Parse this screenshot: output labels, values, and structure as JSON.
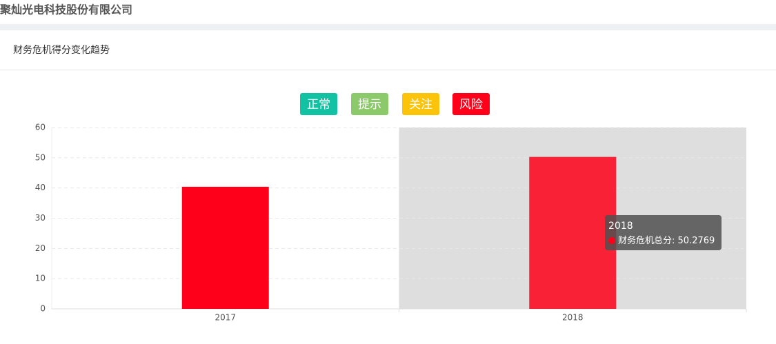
{
  "header": {
    "title": "聚灿光电科技股份有限公司"
  },
  "panel": {
    "title": "财务危机得分变化趋势"
  },
  "chart_data": {
    "type": "bar",
    "levels": [
      {
        "name": "正常",
        "color": "#13c2a3"
      },
      {
        "name": "提示",
        "color": "#8cc96a"
      },
      {
        "name": "关注",
        "color": "#fcc30b"
      },
      {
        "name": "风险",
        "color": "#fe0019"
      }
    ],
    "categories": [
      "2017",
      "2018"
    ],
    "series": [
      {
        "name": "财务危机总分",
        "color": "#fe0019",
        "values": [
          40.4,
          50.2769
        ]
      }
    ],
    "ylim": [
      0,
      60
    ],
    "yticks": [
      0,
      10,
      20,
      30,
      40,
      50,
      60
    ],
    "grid": true,
    "highlighted": 1
  }
}
